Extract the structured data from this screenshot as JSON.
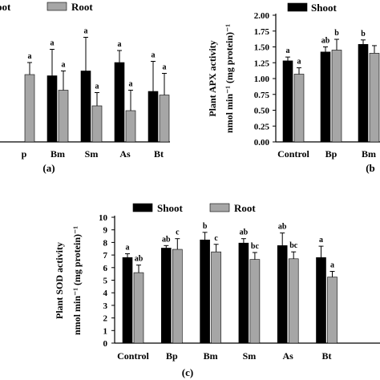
{
  "colors": {
    "shoot": "#000000",
    "root": "#a6a6a6",
    "axis": "#000000"
  },
  "chart_data": [
    {
      "panel": "(a)",
      "type": "bar",
      "partial": true,
      "legend": [
        "oot",
        "Root"
      ],
      "legend_position": "top",
      "categories": [
        "p",
        "Bm",
        "Sm",
        "As",
        "Bt"
      ],
      "series": [
        {
          "name": "Shoot",
          "values": [
            null,
            0.55,
            0.59,
            0.66,
            0.42
          ],
          "errors": [
            null,
            0.22,
            0.28,
            0.1,
            0.25
          ],
          "letters": [
            null,
            "a",
            "a",
            "a",
            "a"
          ]
        },
        {
          "name": "Root",
          "values": [
            0.56,
            0.43,
            0.3,
            0.26,
            0.39
          ],
          "errors": [
            0.1,
            0.16,
            0.11,
            0.17,
            0.18
          ],
          "letters": [
            "a",
            "a",
            "a",
            "a",
            "a"
          ]
        }
      ],
      "ylim": [
        0,
        1.0
      ],
      "caption": "(a)"
    },
    {
      "panel": "(b)",
      "type": "bar",
      "partial": true,
      "legend": [
        "Shoot"
      ],
      "legend_position": "top",
      "ylabel_line1": "Plant APX activity",
      "ylabel_line2": "nmol min⁻¹ (mg protein)⁻¹",
      "categories": [
        "Control",
        "Bp",
        "Bm"
      ],
      "category_labels": [
        "Control",
        "Bp",
        "Bm"
      ],
      "yticks": [
        "0.00",
        "0.25",
        "0.50",
        "0.75",
        "1.00",
        "1.25",
        "1.50",
        "1.75",
        "2.00"
      ],
      "ylim": [
        0,
        2.0
      ],
      "series": [
        {
          "name": "Shoot",
          "values": [
            1.28,
            1.42,
            1.54
          ],
          "errors": [
            0.06,
            0.08,
            0.07
          ],
          "letters": [
            "a",
            "ab",
            "b"
          ]
        },
        {
          "name": "Root",
          "values": [
            1.07,
            1.45,
            1.4
          ],
          "errors": [
            0.1,
            0.17,
            0.12
          ],
          "letters": [
            "a",
            "b",
            null
          ]
        }
      ],
      "caption": "(b"
    },
    {
      "panel": "(c)",
      "type": "bar",
      "legend": [
        "Shoot",
        "Root"
      ],
      "legend_position": "top",
      "ylabel_line1": "Plant SOD activity",
      "ylabel_line2": "nmol min⁻¹ (mg protein)⁻¹",
      "categories": [
        "Control",
        "Bp",
        "Bm",
        "Sm",
        "As",
        "Bt"
      ],
      "yticks": [
        "0",
        "1",
        "2",
        "3",
        "4",
        "5",
        "6",
        "7",
        "8",
        "9",
        "10"
      ],
      "ylim": [
        0,
        10
      ],
      "series": [
        {
          "name": "Shoot",
          "values": [
            6.8,
            7.55,
            8.2,
            7.95,
            7.75,
            6.8
          ],
          "errors": [
            0.3,
            0.2,
            0.6,
            0.35,
            1.0,
            0.9
          ],
          "letters": [
            "a",
            "ab",
            "b",
            "ab",
            "ab",
            "a"
          ]
        },
        {
          "name": "Root",
          "values": [
            5.6,
            7.45,
            7.25,
            6.65,
            6.7,
            5.25
          ],
          "errors": [
            0.6,
            0.85,
            0.6,
            0.55,
            0.55,
            0.45
          ],
          "letters": [
            "ab",
            "c",
            "c",
            "bc",
            "bc",
            "a"
          ]
        }
      ],
      "caption": "(c)"
    }
  ]
}
